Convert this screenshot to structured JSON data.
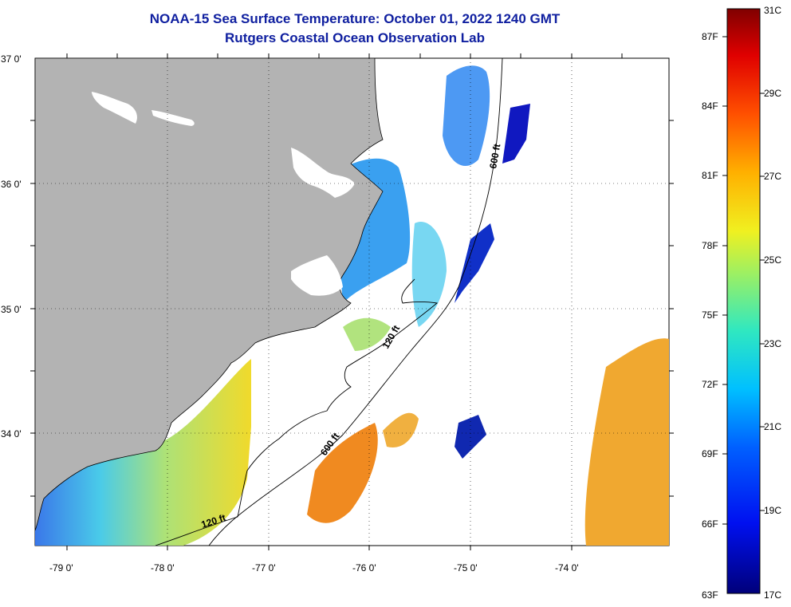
{
  "title": "NOAA-15 Sea Surface Temperature:  October 01, 2022 1240 GMT",
  "subtitle": "Rutgers Coastal Ocean Observation Lab",
  "axes": {
    "lat_labels": [
      "37 0'",
      "36 0'",
      "35 0'",
      "34 0'"
    ],
    "lon_labels": [
      "-79 0'",
      "-78 0'",
      "-77 0'",
      "-76 0'",
      "-75 0'",
      "-74 0'"
    ]
  },
  "contours": {
    "label_600_north": "600 ft",
    "label_600_south": "600 ft",
    "label_120_north": "120 ft",
    "label_120_south": "120 ft"
  },
  "colorbar": {
    "fahrenheit": [
      "87F",
      "84F",
      "81F",
      "78F",
      "75F",
      "72F",
      "69F",
      "66F",
      "63F"
    ],
    "celsius": [
      "31C",
      "29C",
      "27C",
      "25C",
      "23C",
      "21C",
      "19C",
      "17C"
    ],
    "range_c": [
      17,
      31
    ],
    "range_f": [
      63,
      87
    ]
  },
  "colors": {
    "land": "#b3b3b3",
    "title": "#1020a0",
    "no_data": "#ffffff"
  }
}
